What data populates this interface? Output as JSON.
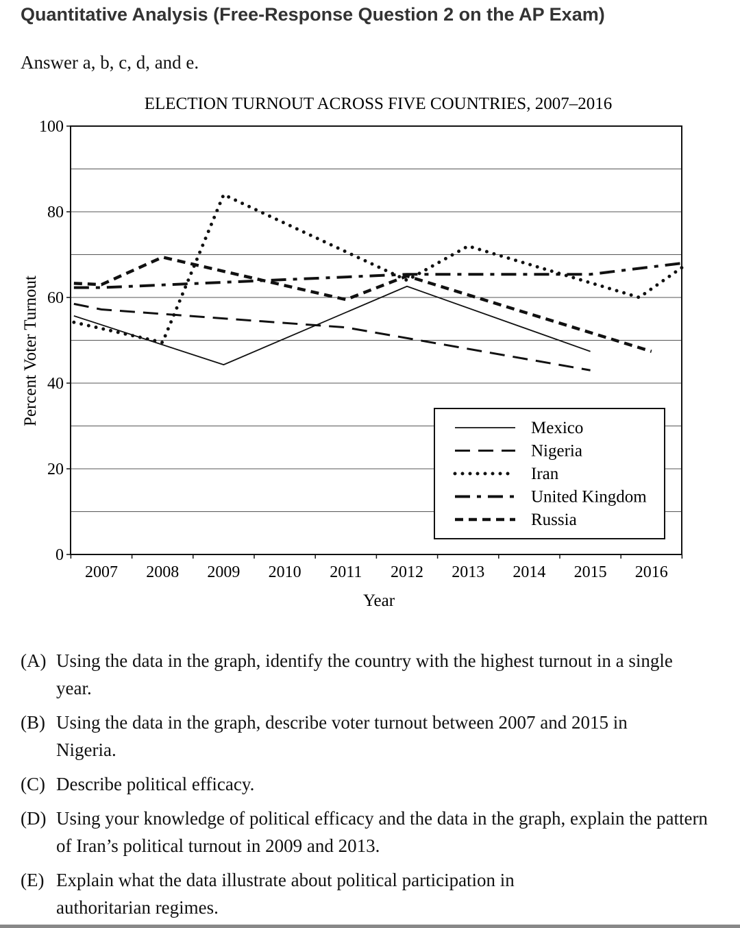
{
  "header": {
    "title": "Quantitative Analysis (Free-Response Question 2 on the AP Exam)",
    "instruction": "Answer a, b, c, d, and e."
  },
  "chart_data": {
    "type": "line",
    "title": "ELECTION TURNOUT ACROSS FIVE COUNTRIES, 2007–2016",
    "xlabel": "Year",
    "ylabel": "Percent Voter Turnout",
    "ylim": [
      0,
      100
    ],
    "yticks": [
      0,
      20,
      40,
      60,
      80,
      100
    ],
    "xticks": [
      2007,
      2008,
      2009,
      2010,
      2011,
      2012,
      2013,
      2014,
      2015,
      2016
    ],
    "grid": "horizontal every 10",
    "legend": "bottom-right",
    "series": [
      {
        "name": "Mexico",
        "style": "solid",
        "points": [
          [
            2006.55,
            55.7
          ],
          [
            2009,
            44.3
          ],
          [
            2012,
            62.6
          ],
          [
            2015,
            47.4
          ]
        ]
      },
      {
        "name": "Nigeria",
        "style": "long-dash",
        "points": [
          [
            2006.55,
            58.5
          ],
          [
            2007,
            57.2
          ],
          [
            2011,
            53
          ],
          [
            2015,
            43
          ]
        ]
      },
      {
        "name": "Iran",
        "style": "dotted",
        "points": [
          [
            2006.55,
            54.2
          ],
          [
            2008,
            49.5
          ],
          [
            2009,
            84
          ],
          [
            2012,
            64
          ],
          [
            2013,
            72
          ],
          [
            2015.8,
            60
          ],
          [
            2016.5,
            67
          ]
        ]
      },
      {
        "name": "United Kingdom",
        "style": "dash-dot",
        "points": [
          [
            2006.55,
            62.3
          ],
          [
            2007,
            62.3
          ],
          [
            2012,
            65.4
          ],
          [
            2015,
            65.4
          ],
          [
            2016.5,
            68
          ]
        ]
      },
      {
        "name": "Russia",
        "style": "short-dash",
        "points": [
          [
            2006.55,
            63.3
          ],
          [
            2007,
            63
          ],
          [
            2008,
            69.4
          ],
          [
            2011,
            59.5
          ],
          [
            2012,
            65
          ],
          [
            2016,
            47.4
          ]
        ]
      }
    ]
  },
  "questions": [
    {
      "label": "(A)",
      "text": "Using the data in the graph, identify the country with the highest turnout in a single year."
    },
    {
      "label": "(B)",
      "text": "Using the data in the graph, describe voter turnout between 2007 and 2015 in Nigeria."
    },
    {
      "label": "(C)",
      "text": "Describe political efficacy."
    },
    {
      "label": "(D)",
      "text": "Using your knowledge of political efficacy and the data in the graph, explain the pattern of Iran’s political turnout in 2009 and 2013."
    },
    {
      "label": "(E)",
      "text": "Explain what the data illustrate about political participation in authoritarian regimes."
    }
  ]
}
